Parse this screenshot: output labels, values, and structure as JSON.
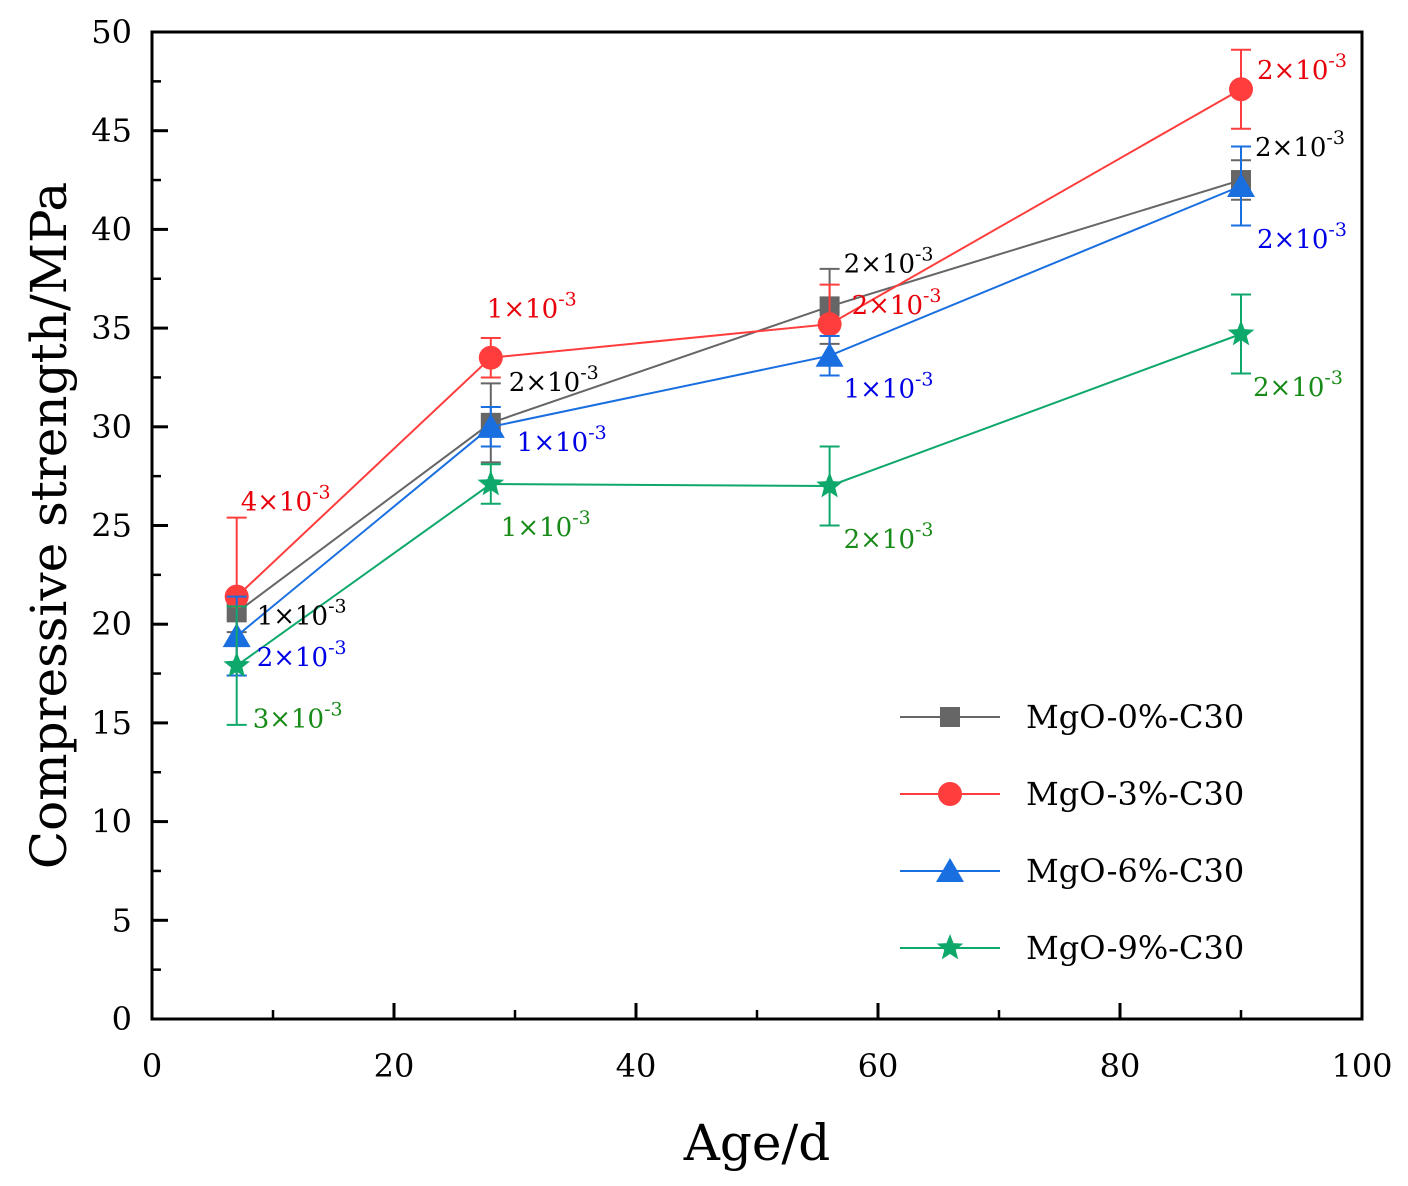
{
  "chart_data": {
    "type": "line",
    "title": "",
    "xlabel": "Age/d",
    "ylabel": "Compressive strength/MPa",
    "xlim": [
      0,
      100
    ],
    "ylim": [
      0,
      50
    ],
    "xticks": [
      0,
      20,
      40,
      60,
      80,
      100
    ],
    "xtick_labels": [
      "0",
      "20",
      "40",
      "60",
      "80",
      "100"
    ],
    "yticks": [
      0,
      5,
      10,
      15,
      20,
      25,
      30,
      35,
      40,
      45,
      50
    ],
    "ytick_labels": [
      "0",
      "5",
      "10",
      "15",
      "20",
      "25",
      "30",
      "35",
      "40",
      "45",
      "50"
    ],
    "legend_position": "bottom-right",
    "x": [
      7,
      28,
      56,
      90
    ],
    "series": [
      {
        "name": "MgO-0%-C30",
        "color": "#666666",
        "text_color": "#000000",
        "marker": "square",
        "values": [
          20.6,
          30.2,
          36.1,
          42.5
        ],
        "errors": [
          1.0,
          2.0,
          1.9,
          1.0
        ],
        "annotations": [
          {
            "base": "1×10",
            "exp": "-3"
          },
          {
            "base": "2×10",
            "exp": "-3"
          },
          {
            "base": "2×10",
            "exp": "-3"
          },
          {
            "base": "2×10",
            "exp": "-3"
          }
        ]
      },
      {
        "name": "MgO-3%-C30",
        "color": "#ff3d3d",
        "text_color": "#e8000b",
        "marker": "circle",
        "values": [
          21.4,
          33.5,
          35.2,
          47.1
        ],
        "errors": [
          4.0,
          1.0,
          2.0,
          2.0
        ],
        "annotations": [
          {
            "base": "4×10",
            "exp": "-3"
          },
          {
            "base": "1×10",
            "exp": "-3"
          },
          {
            "base": "2×10",
            "exp": "-3"
          },
          {
            "base": "2×10",
            "exp": "-3"
          }
        ]
      },
      {
        "name": "MgO-6%-C30",
        "color": "#1a6fe0",
        "text_color": "#0000e6",
        "marker": "triangle",
        "values": [
          19.4,
          30.0,
          33.6,
          42.2
        ],
        "errors": [
          2.0,
          1.0,
          1.0,
          2.0
        ],
        "annotations": [
          {
            "base": "2×10",
            "exp": "-3"
          },
          {
            "base": "1×10",
            "exp": "-3"
          },
          {
            "base": "1×10",
            "exp": "-3"
          },
          {
            "base": "2×10",
            "exp": "-3"
          }
        ]
      },
      {
        "name": "MgO-9%-C30",
        "color": "#0fa86b",
        "text_color": "#178a17",
        "marker": "star",
        "values": [
          17.9,
          27.1,
          27.0,
          34.7
        ],
        "errors": [
          3.0,
          1.0,
          2.0,
          2.0
        ],
        "annotations": [
          {
            "base": "3×10",
            "exp": "-3"
          },
          {
            "base": "1×10",
            "exp": "-3"
          },
          {
            "base": "2×10",
            "exp": "-3"
          },
          {
            "base": "2×10",
            "exp": "-3"
          }
        ]
      }
    ]
  }
}
